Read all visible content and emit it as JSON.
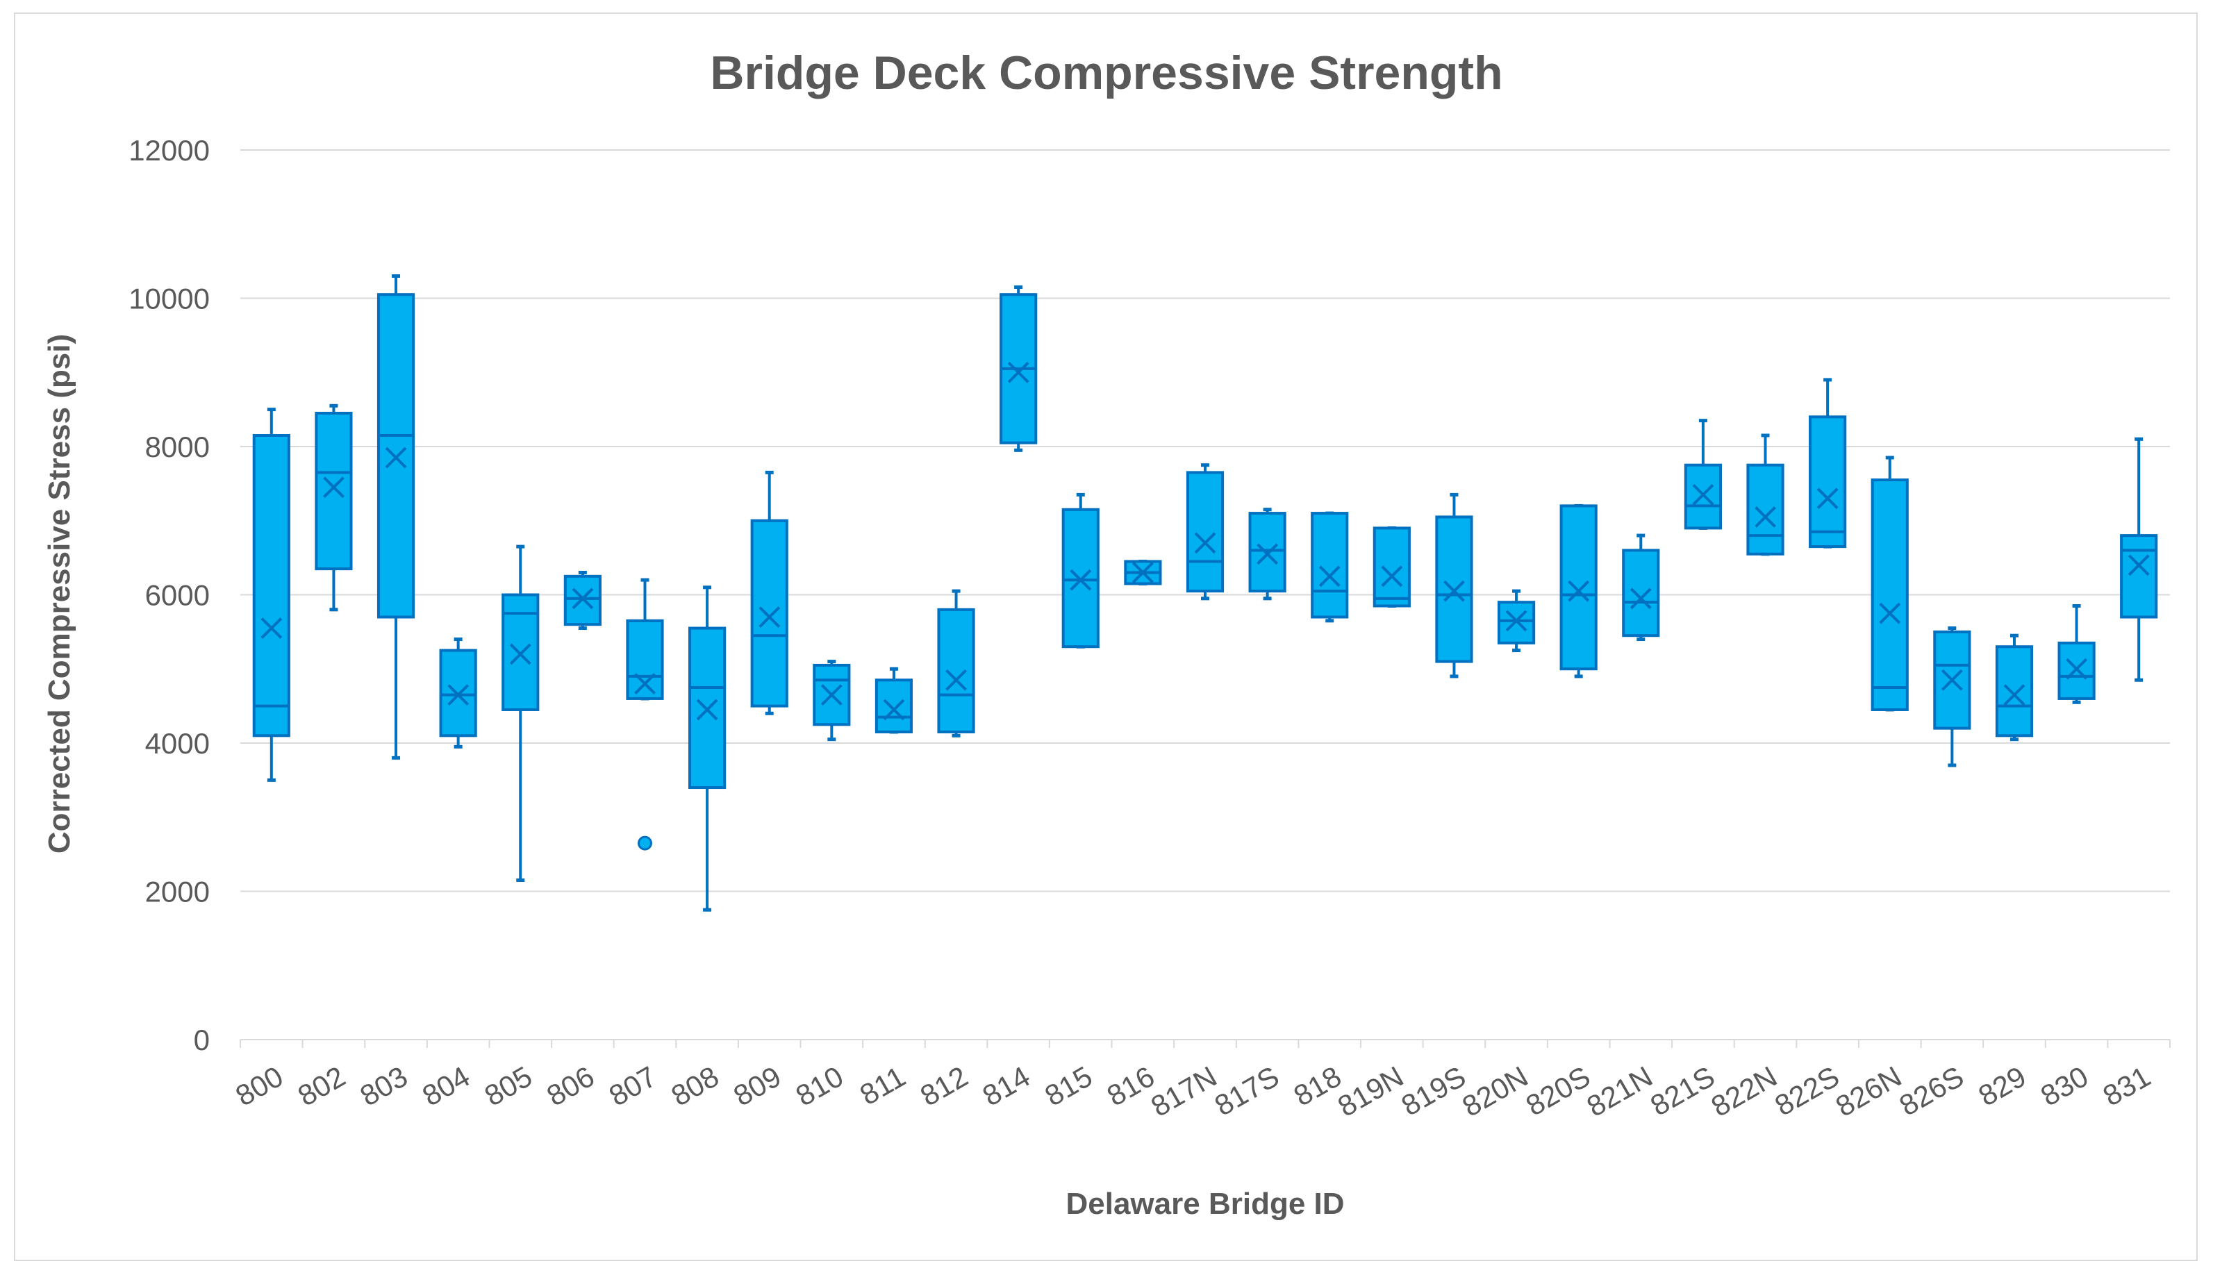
{
  "chart_data": {
    "type": "box",
    "title": "Bridge Deck Compressive Strength",
    "xlabel": "Delaware Bridge ID",
    "ylabel": "Corrected Compressive Stress (psi)",
    "ylim": [
      0,
      12000
    ],
    "yticks": [
      0,
      2000,
      4000,
      6000,
      8000,
      10000,
      12000
    ],
    "grid": true,
    "colors": {
      "box": "#00b0f0",
      "stroke": "#0070c0",
      "grid": "#d9d9d9",
      "text": "#595959"
    },
    "categories": [
      "800",
      "802",
      "803",
      "804",
      "805",
      "806",
      "807",
      "808",
      "809",
      "810",
      "811",
      "812",
      "814",
      "815",
      "816",
      "817N",
      "817S",
      "818",
      "819N",
      "819S",
      "820N",
      "820S",
      "821N",
      "821S",
      "822N",
      "822S",
      "826N",
      "826S",
      "829",
      "830",
      "831"
    ],
    "boxes": [
      {
        "id": "800",
        "min": 3500,
        "q1": 4100,
        "median": 4500,
        "q3": 8150,
        "max": 8500,
        "mean": 5550,
        "outliers": []
      },
      {
        "id": "802",
        "min": 5800,
        "q1": 6350,
        "median": 7650,
        "q3": 8450,
        "max": 8550,
        "mean": 7450,
        "outliers": []
      },
      {
        "id": "803",
        "min": 3800,
        "q1": 5700,
        "median": 8150,
        "q3": 10050,
        "max": 10300,
        "mean": 7850,
        "outliers": []
      },
      {
        "id": "804",
        "min": 3950,
        "q1": 4100,
        "median": 4650,
        "q3": 5250,
        "max": 5400,
        "mean": 4650,
        "outliers": []
      },
      {
        "id": "805",
        "min": 2150,
        "q1": 4450,
        "median": 5750,
        "q3": 6000,
        "max": 6650,
        "mean": 5200,
        "outliers": []
      },
      {
        "id": "806",
        "min": 5550,
        "q1": 5600,
        "median": 5950,
        "q3": 6250,
        "max": 6300,
        "mean": 5950,
        "outliers": []
      },
      {
        "id": "807",
        "min": 4600,
        "q1": 4600,
        "median": 4900,
        "q3": 5650,
        "max": 6200,
        "mean": 4800,
        "outliers": [
          2650
        ]
      },
      {
        "id": "808",
        "min": 1750,
        "q1": 3400,
        "median": 4750,
        "q3": 5550,
        "max": 6100,
        "mean": 4450,
        "outliers": []
      },
      {
        "id": "809",
        "min": 4400,
        "q1": 4500,
        "median": 5450,
        "q3": 7000,
        "max": 7650,
        "mean": 5700,
        "outliers": []
      },
      {
        "id": "810",
        "min": 4050,
        "q1": 4250,
        "median": 4850,
        "q3": 5050,
        "max": 5100,
        "mean": 4650,
        "outliers": []
      },
      {
        "id": "811",
        "min": 4150,
        "q1": 4150,
        "median": 4350,
        "q3": 4850,
        "max": 5000,
        "mean": 4450,
        "outliers": []
      },
      {
        "id": "812",
        "min": 4100,
        "q1": 4150,
        "median": 4650,
        "q3": 5800,
        "max": 6050,
        "mean": 4850,
        "outliers": []
      },
      {
        "id": "814",
        "min": 7950,
        "q1": 8050,
        "median": 9050,
        "q3": 10050,
        "max": 10150,
        "mean": 9000,
        "outliers": []
      },
      {
        "id": "815",
        "min": 5300,
        "q1": 5300,
        "median": 6200,
        "q3": 7150,
        "max": 7350,
        "mean": 6200,
        "outliers": []
      },
      {
        "id": "816",
        "min": 6150,
        "q1": 6150,
        "median": 6300,
        "q3": 6450,
        "max": 6450,
        "mean": 6300,
        "outliers": []
      },
      {
        "id": "817N",
        "min": 5950,
        "q1": 6050,
        "median": 6450,
        "q3": 7650,
        "max": 7750,
        "mean": 6700,
        "outliers": []
      },
      {
        "id": "817S",
        "min": 5950,
        "q1": 6050,
        "median": 6600,
        "q3": 7100,
        "max": 7150,
        "mean": 6550,
        "outliers": []
      },
      {
        "id": "818",
        "min": 5650,
        "q1": 5700,
        "median": 6050,
        "q3": 7100,
        "max": 7100,
        "mean": 6250,
        "outliers": []
      },
      {
        "id": "819N",
        "min": 5850,
        "q1": 5850,
        "median": 5950,
        "q3": 6900,
        "max": 6900,
        "mean": 6250,
        "outliers": []
      },
      {
        "id": "819S",
        "min": 4900,
        "q1": 5100,
        "median": 6000,
        "q3": 7050,
        "max": 7350,
        "mean": 6050,
        "outliers": []
      },
      {
        "id": "820N",
        "min": 5250,
        "q1": 5350,
        "median": 5650,
        "q3": 5900,
        "max": 6050,
        "mean": 5650,
        "outliers": []
      },
      {
        "id": "820S",
        "min": 4900,
        "q1": 5000,
        "median": 6000,
        "q3": 7200,
        "max": 7200,
        "mean": 6050,
        "outliers": []
      },
      {
        "id": "821N",
        "min": 5400,
        "q1": 5450,
        "median": 5900,
        "q3": 6600,
        "max": 6800,
        "mean": 5950,
        "outliers": []
      },
      {
        "id": "821S",
        "min": 6900,
        "q1": 6900,
        "median": 7200,
        "q3": 7750,
        "max": 8350,
        "mean": 7350,
        "outliers": []
      },
      {
        "id": "822N",
        "min": 6550,
        "q1": 6550,
        "median": 6800,
        "q3": 7750,
        "max": 8150,
        "mean": 7050,
        "outliers": []
      },
      {
        "id": "822S",
        "min": 6650,
        "q1": 6650,
        "median": 6850,
        "q3": 8400,
        "max": 8900,
        "mean": 7300,
        "outliers": []
      },
      {
        "id": "826N",
        "min": 4450,
        "q1": 4450,
        "median": 4750,
        "q3": 7550,
        "max": 7850,
        "mean": 5750,
        "outliers": []
      },
      {
        "id": "826S",
        "min": 3700,
        "q1": 4200,
        "median": 5050,
        "q3": 5500,
        "max": 5550,
        "mean": 4850,
        "outliers": []
      },
      {
        "id": "829",
        "min": 4050,
        "q1": 4100,
        "median": 4500,
        "q3": 5300,
        "max": 5450,
        "mean": 4650,
        "outliers": []
      },
      {
        "id": "830",
        "min": 4550,
        "q1": 4600,
        "median": 4900,
        "q3": 5350,
        "max": 5850,
        "mean": 5000,
        "outliers": []
      },
      {
        "id": "831",
        "min": 4850,
        "q1": 5700,
        "median": 6600,
        "q3": 6800,
        "max": 8100,
        "mean": 6400,
        "outliers": []
      }
    ]
  }
}
